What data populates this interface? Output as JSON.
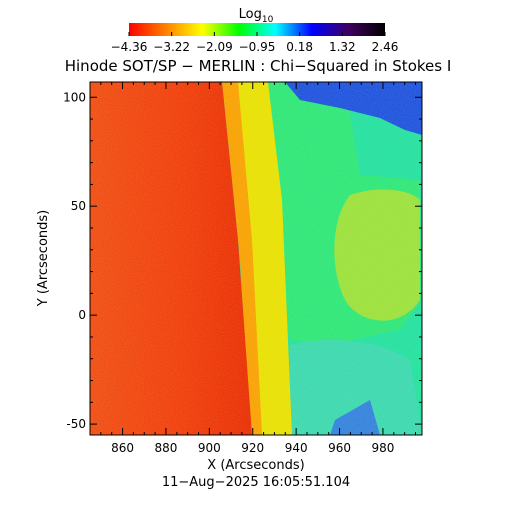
{
  "chart_data": {
    "type": "heatmap",
    "title": "Hinode SOT/SP − MERLIN : Chi−Squared in Stokes I",
    "xlabel": "X (Arcseconds)",
    "ylabel": "Y (Arcseconds)",
    "xlim": [
      845,
      998
    ],
    "ylim": [
      -55,
      107
    ],
    "xticks": [
      860,
      880,
      900,
      920,
      940,
      960,
      980
    ],
    "yticks": [
      -50,
      0,
      50,
      100
    ],
    "timestamp": "11−Aug−2025 16:05:51.104",
    "colorbar": {
      "label_base": "Log",
      "label_sub": "10",
      "min": -4.36,
      "max": 2.46,
      "ticks": [
        "−4.36",
        "−3.22",
        "−2.09",
        "−0.95",
        "0.18",
        "1.32",
        "2.46"
      ],
      "colormap": [
        "#ff0000",
        "#ff8000",
        "#ffff00",
        "#00ff00",
        "#00ffff",
        "#0000ff",
        "#400060",
        "#000000"
      ]
    },
    "regions": {
      "limb_x_at_top": 913,
      "limb_x_at_bottom": 922,
      "disk_log_value": -4.1,
      "limb_band_log_value": -2.2,
      "off_limb_log_value": -0.9,
      "dark_patch_log_value": 1.0
    }
  }
}
